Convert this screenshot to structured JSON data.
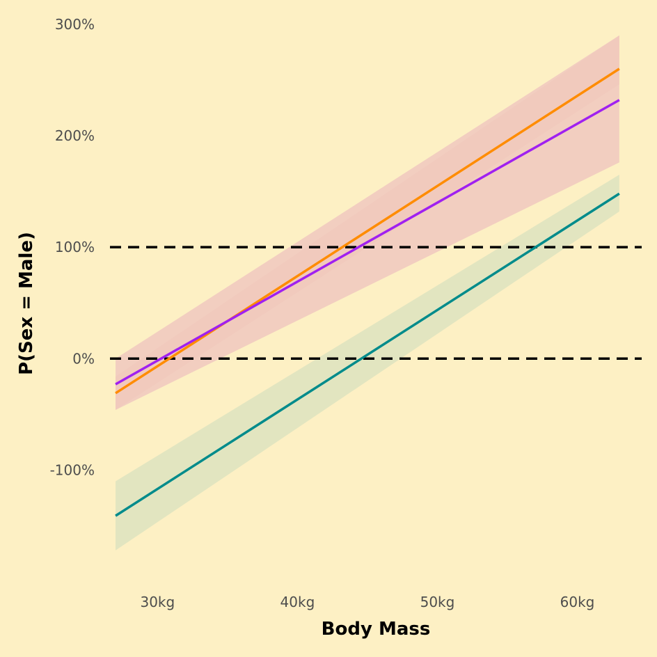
{
  "chart_data": {
    "type": "line",
    "title": "",
    "xlabel": "Body Mass",
    "ylabel": "P(Sex = Male)",
    "xlim": [
      26.6,
      64.6
    ],
    "ylim": [
      -2.04,
      3.03
    ],
    "x_ticks": [
      30,
      40,
      50,
      60
    ],
    "x_tick_labels": [
      "30kg",
      "40kg",
      "50kg",
      "60kg"
    ],
    "y_ticks": [
      -1,
      0,
      1,
      2,
      3
    ],
    "y_tick_labels": [
      "-100%",
      "0%",
      "100%",
      "200%",
      "300%"
    ],
    "reference_lines": [
      0,
      1
    ],
    "grid": false,
    "legend": "none",
    "series": [
      {
        "color": "#ff8c00",
        "band_color": "#f4cfae",
        "x": [
          27,
          63
        ],
        "y": [
          -0.31,
          2.6
        ],
        "lower": [
          -0.46,
          2.46
        ],
        "upper": [
          -0.16,
          2.9
        ]
      },
      {
        "color": "#a020f0",
        "band_color": "#f0c8c0",
        "x": [
          27,
          63
        ],
        "y": [
          -0.23,
          2.32
        ],
        "lower": [
          -0.46,
          1.76
        ],
        "upper": [
          0.0,
          2.9
        ]
      },
      {
        "color": "#008b8b",
        "band_color": "#dde3c0",
        "x": [
          27,
          63
        ],
        "y": [
          -1.41,
          1.48
        ],
        "lower": [
          -1.72,
          1.32
        ],
        "upper": [
          -1.1,
          1.65
        ]
      }
    ]
  }
}
